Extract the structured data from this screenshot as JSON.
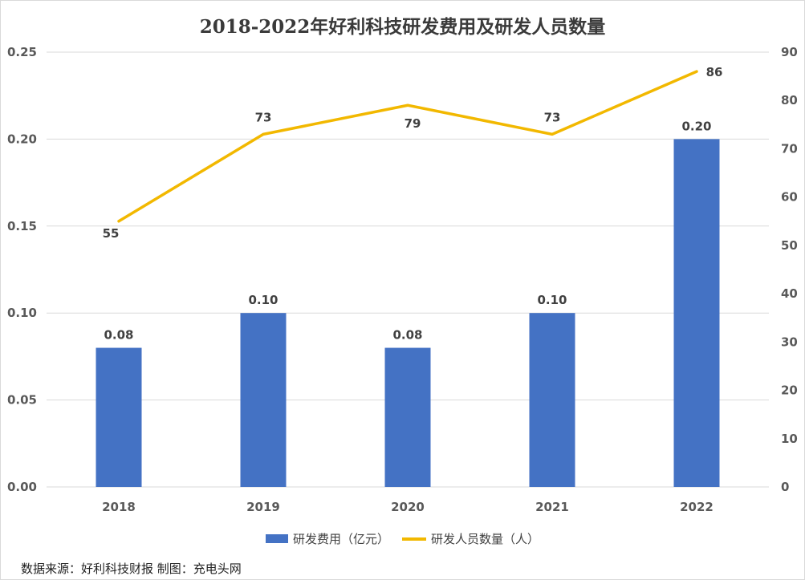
{
  "colors": {
    "bar": "#4472c4",
    "line": "#f2b800",
    "grid": "#d9d9d9",
    "axis_text": "#595959",
    "label_text": "#404040"
  },
  "source_note": "数据来源：好利科技财报  制图：充电头网",
  "chart_data": {
    "type": "bar",
    "title": "2018-2022年好利科技研发费用及研发人员数量",
    "categories": [
      "2018",
      "2019",
      "2020",
      "2021",
      "2022"
    ],
    "series": [
      {
        "name": "研发费用（亿元）",
        "type": "bar",
        "axis": "left",
        "values": [
          0.08,
          0.1,
          0.08,
          0.1,
          0.2
        ],
        "labels": [
          "0.08",
          "0.10",
          "0.08",
          "0.10",
          "0.20"
        ]
      },
      {
        "name": "研发人员数量（人）",
        "type": "line",
        "axis": "right",
        "values": [
          55,
          73,
          79,
          73,
          86
        ],
        "labels": [
          "55",
          "73",
          "79",
          "73",
          "86"
        ]
      }
    ],
    "ylim_left": [
      0,
      0.25
    ],
    "yticks_left": [
      "0.00",
      "0.05",
      "0.10",
      "0.15",
      "0.20",
      "0.25"
    ],
    "ylim_right": [
      0,
      90
    ],
    "yticks_right": [
      "0",
      "10",
      "20",
      "30",
      "40",
      "50",
      "60",
      "70",
      "80",
      "90"
    ],
    "grid": true,
    "legend_position": "bottom"
  }
}
